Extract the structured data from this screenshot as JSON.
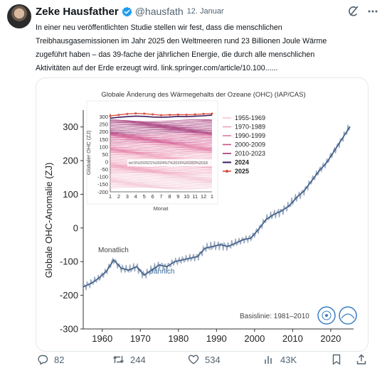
{
  "post": {
    "author_name": "Zeke Hausfather",
    "handle": "@hausfath",
    "date": "12. Januar",
    "text_lines": [
      "In einer neu veröffentlichten Studie stellen wir fest, dass die menschlichen",
      "Treibhausgasemissionen im Jahr 2025 den Weltmeeren rund 23 Billionen Joule Wärme",
      "zugeführt haben – das 39-fache der jährlichen Energie, die durch alle menschlichen",
      "Aktivitäten auf der Erde erzeugt wird. link.springer.com/article/10.100......"
    ]
  },
  "icons": {
    "verified": "verified-badge-icon",
    "grok": "grok-icon",
    "more": "more-options-icon",
    "reply": "reply-icon",
    "repost": "repost-icon",
    "like": "like-icon",
    "views": "views-icon",
    "bookmark": "bookmark-icon",
    "share": "share-icon"
  },
  "actions": {
    "replies": "82",
    "reposts": "244",
    "likes": "534",
    "views": "43K"
  },
  "chart_data": [
    {
      "type": "line",
      "ylabel": "Globale OHC-Anomalie (ZJ)",
      "xlim": [
        1955,
        2026
      ],
      "ylim": [
        -300,
        350
      ],
      "x_ticks": [
        "1960",
        "1970",
        "1980",
        "1990",
        "2000",
        "2010",
        "2020"
      ],
      "y_ticks": [
        "-300",
        "-200",
        "-100",
        "0",
        "100",
        "200",
        "300"
      ],
      "annotations": [
        "Monatlich",
        "Jährlich",
        "Basislinie: 1981–2010"
      ],
      "series": [
        {
          "name": "Jährlich",
          "x": [
            1955,
            1957,
            1959,
            1961,
            1963,
            1965,
            1967,
            1969,
            1971,
            1973,
            1975,
            1977,
            1979,
            1981,
            1983,
            1985,
            1987,
            1989,
            1991,
            1993,
            1995,
            1997,
            1999,
            2001,
            2003,
            2005,
            2007,
            2009,
            2011,
            2013,
            2015,
            2017,
            2019,
            2021,
            2023,
            2025
          ],
          "y": [
            -175,
            -165,
            -150,
            -130,
            -95,
            -120,
            -125,
            -115,
            -140,
            -125,
            -110,
            -115,
            -100,
            -95,
            -90,
            -85,
            -60,
            -55,
            -50,
            -55,
            -45,
            -35,
            -30,
            -5,
            25,
            40,
            50,
            65,
            90,
            110,
            140,
            170,
            195,
            230,
            265,
            300
          ]
        }
      ],
      "colors": {
        "line": "#3b5b86",
        "monthly": "#9aa9bd"
      }
    },
    {
      "type": "line",
      "title": "Globale Änderung des Wärmegehalts der Ozeane (OHC) (IAP/CAS)",
      "xlabel": "Monat",
      "ylabel": "Globaler OHC (ZJ)",
      "categories": [
        "1",
        "2",
        "3",
        "4",
        "5",
        "6",
        "7",
        "8",
        "9",
        "10",
        "11",
        "12",
        "1"
      ],
      "y_ticks": [
        "300",
        "250",
        "200",
        "150",
        "100",
        "50",
        "0",
        "-50",
        "-100",
        "-150",
        "-200"
      ],
      "ylim": [
        -200,
        320
      ],
      "overlay_text": "tel:5%20202‌1%2024%7%2015%20283%2018",
      "legend": [
        "1955-1969",
        "1970-1989",
        "1990-1999",
        "2000-2009",
        "2010-2023",
        "2024",
        "2025"
      ],
      "legend_colors": [
        "#f3c4d4",
        "#ee9fb8",
        "#e277a0",
        "#cf4e88",
        "#a12f73",
        "#3b1a5e",
        "#d94b3a"
      ],
      "series": [
        {
          "name": "2024",
          "values": [
            290,
            296,
            300,
            304,
            302,
            298,
            296,
            298,
            302,
            300,
            303,
            306,
            310
          ]
        },
        {
          "name": "2025",
          "values": [
            305,
            312,
            318,
            322,
            320,
            315,
            310,
            312,
            314,
            313,
            315,
            318,
            320
          ]
        }
      ]
    }
  ]
}
